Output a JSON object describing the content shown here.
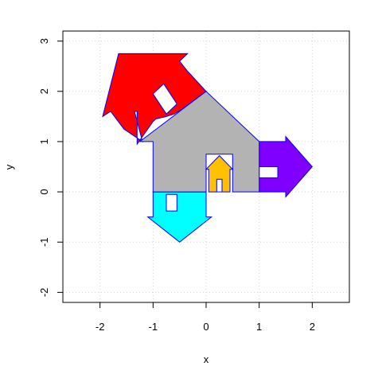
{
  "chart_data": {
    "type": "scatter",
    "title": "",
    "xlabel": "x",
    "ylabel": "y",
    "xlim": [
      -2.7,
      2.7
    ],
    "ylim": [
      -2.2,
      3.2
    ],
    "x_ticks": [
      -2,
      -1,
      0,
      1,
      2
    ],
    "y_ticks": [
      -2,
      -1,
      0,
      1,
      2,
      3
    ],
    "x_tick_labels": [
      "-2",
      "-1",
      "0",
      "1",
      "2"
    ],
    "y_tick_labels": [
      "-2",
      "-1",
      "0",
      "1",
      "2",
      "3"
    ],
    "grid": true,
    "grid_style": "dotted",
    "stroke_color": "#0000ff",
    "shapes": [
      {
        "id": "red-house",
        "fill": "#ff0000",
        "points": [
          [
            -1.35,
            1.6
          ],
          [
            -1.3,
            1.6
          ],
          [
            -1.3,
            0.95
          ],
          [
            -1.0,
            1.4
          ],
          [
            -0.95,
            1.45
          ],
          [
            -0.75,
            1.5
          ],
          [
            -0.6,
            1.55
          ],
          [
            -0.45,
            1.65
          ],
          [
            0.0,
            2.0
          ],
          [
            -0.35,
            2.4
          ],
          [
            -0.5,
            2.6
          ],
          [
            -0.35,
            2.75
          ],
          [
            -0.6,
            2.75
          ],
          [
            -1.65,
            2.75
          ],
          [
            -1.95,
            1.5
          ],
          [
            -1.8,
            1.6
          ],
          [
            -1.55,
            1.25
          ],
          [
            -1.2,
            1.0
          ]
        ],
        "holes": [
          [
            [
              -1.0,
              1.95
            ],
            [
              -0.8,
              2.15
            ],
            [
              -0.55,
              1.75
            ],
            [
              -0.75,
              1.55
            ]
          ]
        ]
      },
      {
        "id": "cyan-arrow",
        "fill": "#00ffff",
        "points": [
          [
            -1.0,
            0.0
          ],
          [
            0.0,
            0.0
          ],
          [
            0.0,
            -0.5
          ],
          [
            0.1,
            -0.5
          ],
          [
            -0.5,
            -1.0
          ],
          [
            -1.1,
            -0.5
          ],
          [
            -1.0,
            -0.5
          ]
        ],
        "holes": [
          [
            [
              -0.75,
              -0.05
            ],
            [
              -0.55,
              -0.05
            ],
            [
              -0.55,
              -0.38
            ],
            [
              -0.75,
              -0.38
            ]
          ]
        ]
      },
      {
        "id": "purple-arrow",
        "fill": "#8000ff",
        "points": [
          [
            1.0,
            0.0
          ],
          [
            1.5,
            0.0
          ],
          [
            1.5,
            -0.1
          ],
          [
            2.0,
            0.5
          ],
          [
            1.5,
            1.1
          ],
          [
            1.5,
            1.0
          ],
          [
            1.0,
            1.0
          ]
        ],
        "holes": [
          [
            [
              1.0,
              0.5
            ],
            [
              1.35,
              0.5
            ],
            [
              1.35,
              0.28
            ],
            [
              1.0,
              0.28
            ]
          ]
        ]
      },
      {
        "id": "gray-house",
        "fill": "#b3b3b3",
        "points": [
          [
            -1.0,
            0.0
          ],
          [
            -1.0,
            1.0
          ],
          [
            -1.25,
            1.0
          ],
          [
            0.0,
            2.0
          ],
          [
            1.0,
            1.0
          ],
          [
            1.0,
            0.0
          ],
          [
            0.5,
            0.0
          ],
          [
            0.5,
            0.75
          ],
          [
            0.0,
            0.75
          ],
          [
            0.0,
            0.0
          ]
        ],
        "holes": []
      },
      {
        "id": "yellow-house",
        "fill": "#ffc000",
        "points": [
          [
            0.05,
            0.0
          ],
          [
            0.05,
            0.45
          ],
          [
            0.0,
            0.45
          ],
          [
            0.25,
            0.72
          ],
          [
            0.5,
            0.45
          ],
          [
            0.45,
            0.45
          ],
          [
            0.45,
            0.0
          ]
        ],
        "holes": [
          [
            [
              0.2,
              0.0
            ],
            [
              0.3,
              0.0
            ],
            [
              0.3,
              0.25
            ],
            [
              0.2,
              0.25
            ]
          ]
        ]
      }
    ]
  }
}
